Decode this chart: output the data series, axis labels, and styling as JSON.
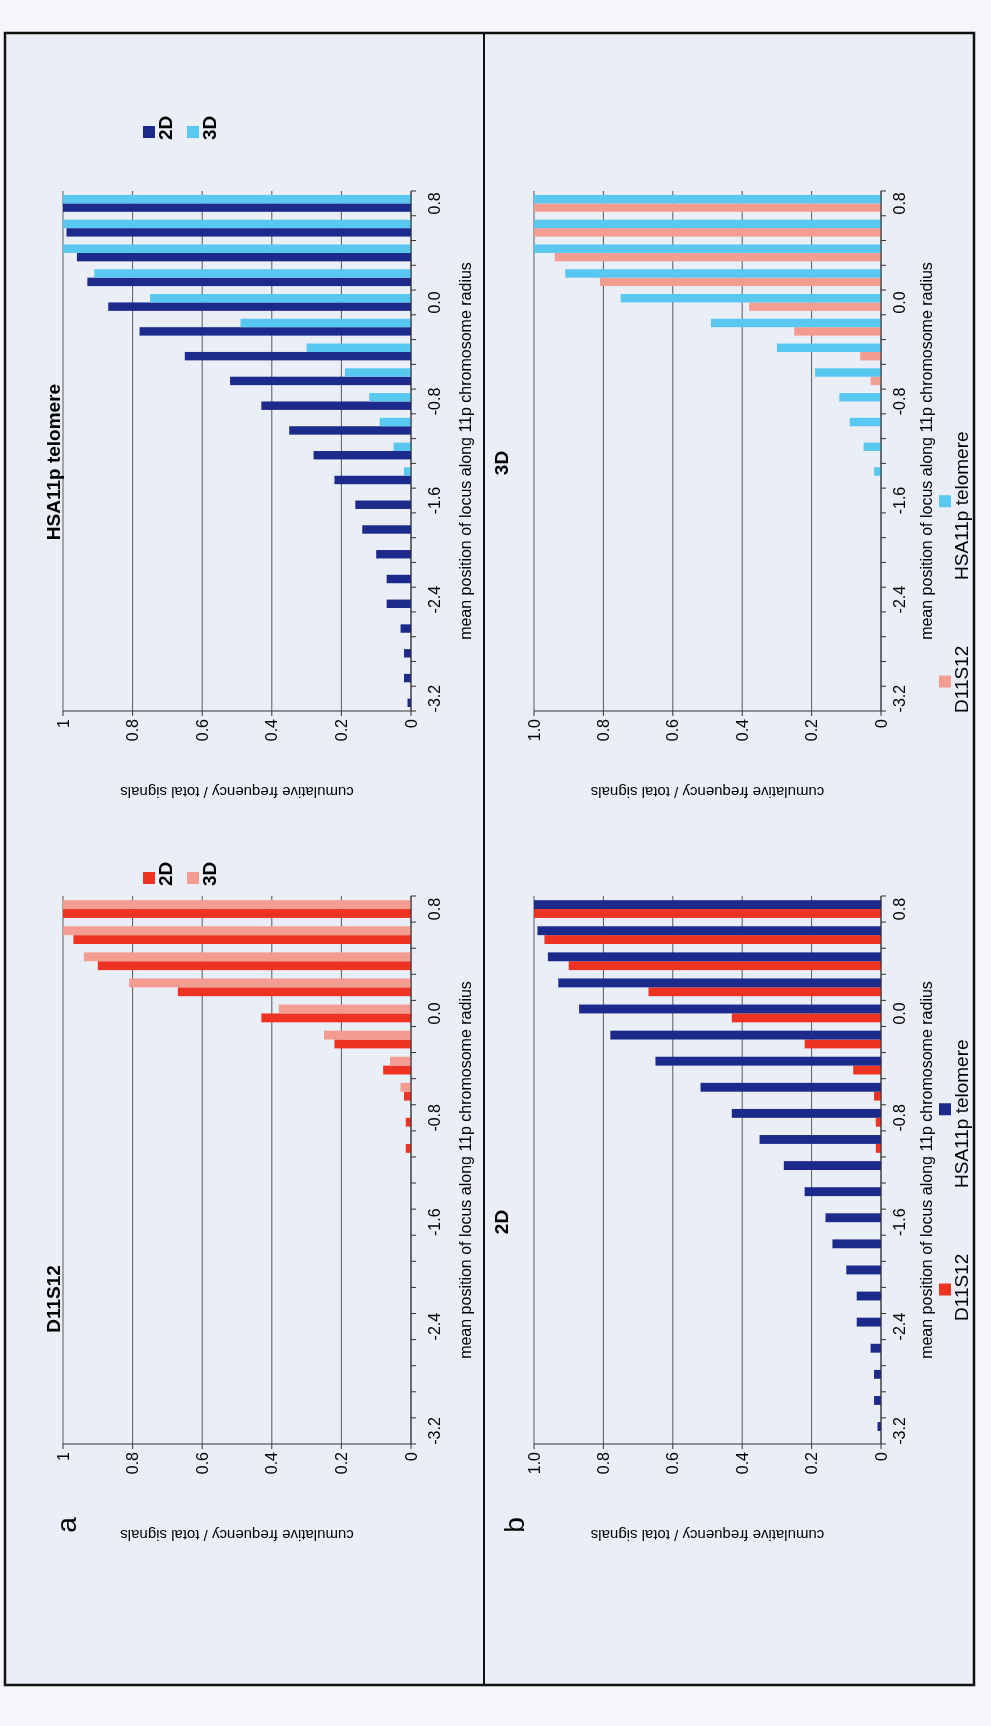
{
  "chart_data": [
    {
      "type": "bar",
      "orientation": "horizontal",
      "title": "D11S12",
      "ylabel": "mean position of locus along 11p chromosome radius",
      "xlabel": "cumulative frequency / total signals",
      "annotations": [
        "a"
      ],
      "categories": [
        "0.8",
        null,
        null,
        null,
        "0.0",
        null,
        null,
        null,
        "-0.8",
        null,
        null,
        null,
        "-1.6",
        null,
        null,
        null,
        "-2.4",
        null,
        null,
        null,
        "-3.2"
      ],
      "series": [
        {
          "name": "2D",
          "color": "#ee3322",
          "values": [
            1.0,
            0.97,
            0.9,
            0.67,
            0.43,
            0.22,
            0.08,
            0.02,
            0.015,
            0.015,
            null,
            null,
            null,
            null,
            null,
            null,
            null,
            null,
            null,
            null,
            null
          ]
        },
        {
          "name": "3D",
          "color": "#f29c92",
          "values": [
            1.0,
            1.0,
            0.94,
            0.81,
            0.38,
            0.25,
            0.06,
            0.03,
            null,
            null,
            null,
            null,
            null,
            null,
            null,
            null,
            null,
            null,
            null,
            null,
            null
          ]
        }
      ],
      "xlim": [
        1,
        0
      ],
      "xticks": [
        0,
        0.2,
        0.4,
        0.6,
        0.8,
        1
      ],
      "grid": "x",
      "legend": "top"
    },
    {
      "type": "bar",
      "orientation": "horizontal",
      "title": "HSA11p telomere",
      "ylabel": "mean position of locus along 11p chromosome radius",
      "xlabel": "cumulative frequency / total signals",
      "categories": [
        "0.8",
        null,
        null,
        null,
        "0.0",
        null,
        null,
        null,
        "-0.8",
        null,
        null,
        null,
        "-1.6",
        null,
        null,
        null,
        "-2.4",
        null,
        null,
        null,
        "-3.2"
      ],
      "series": [
        {
          "name": "2D",
          "color": "#1c2a8c",
          "values": [
            1.0,
            0.99,
            0.96,
            0.93,
            0.87,
            0.78,
            0.65,
            0.52,
            0.43,
            0.35,
            0.28,
            0.22,
            0.16,
            0.14,
            0.1,
            0.07,
            0.07,
            0.03,
            0.02,
            0.02,
            0.01
          ]
        },
        {
          "name": "3D",
          "color": "#58c8f0",
          "values": [
            1.0,
            1.0,
            1.0,
            0.91,
            0.75,
            0.49,
            0.3,
            0.19,
            0.12,
            0.09,
            0.05,
            0.02,
            null,
            null,
            null,
            null,
            null,
            null,
            null,
            null,
            null
          ]
        }
      ],
      "xlim": [
        1,
        0
      ],
      "xticks": [
        0,
        0.2,
        0.4,
        0.6,
        0.8,
        1
      ],
      "grid": "x",
      "legend": "top"
    },
    {
      "type": "bar",
      "orientation": "horizontal",
      "title": "2D",
      "ylabel": "mean position of locus along 11p chromosome radius",
      "xlabel": "cumulative frequency / total signals",
      "annotations": [
        "b"
      ],
      "categories": [
        "0.8",
        null,
        null,
        null,
        "0.0",
        null,
        null,
        null,
        "-0.8",
        null,
        null,
        null,
        "-1.6",
        null,
        null,
        null,
        "-2.4",
        null,
        null,
        null,
        "-3.2"
      ],
      "series": [
        {
          "name": "D11S12",
          "color": "#ee3322",
          "values": [
            1.0,
            0.97,
            0.9,
            0.67,
            0.43,
            0.22,
            0.08,
            0.02,
            0.015,
            0.015,
            null,
            null,
            null,
            null,
            null,
            null,
            null,
            null,
            null,
            null,
            null
          ]
        },
        {
          "name": "HSA11p telomere",
          "color": "#1c2a8c",
          "values": [
            1.0,
            0.99,
            0.96,
            0.93,
            0.87,
            0.78,
            0.65,
            0.52,
            0.43,
            0.35,
            0.28,
            0.22,
            0.16,
            0.14,
            0.1,
            0.07,
            0.07,
            0.03,
            0.02,
            0.02,
            0.01
          ]
        }
      ],
      "xlim": [
        1,
        0
      ],
      "xticks": [
        0,
        0.2,
        0.4,
        0.6,
        0.8,
        {
          "value": 1,
          "label": "1.0"
        }
      ],
      "grid": "x",
      "legend": "right"
    },
    {
      "type": "bar",
      "orientation": "horizontal",
      "title": "3D",
      "ylabel": "mean position of locus along 11p chromosome radius",
      "xlabel": "cumulative frequency / total signals",
      "categories": [
        "0.8",
        null,
        null,
        null,
        "0.0",
        null,
        null,
        null,
        "-0.8",
        null,
        null,
        null,
        "-1.6",
        null,
        null,
        null,
        "-2.4",
        null,
        null,
        null,
        "-3.2"
      ],
      "series": [
        {
          "name": "D11S12",
          "color": "#f29c92",
          "values": [
            1.0,
            1.0,
            0.94,
            0.81,
            0.38,
            0.25,
            0.06,
            0.03,
            null,
            null,
            null,
            null,
            null,
            null,
            null,
            null,
            null,
            null,
            null,
            null,
            null
          ]
        },
        {
          "name": "HSA11p telomere",
          "color": "#58c8f0",
          "values": [
            1.0,
            1.0,
            1.0,
            0.91,
            0.75,
            0.49,
            0.3,
            0.19,
            0.12,
            0.09,
            0.05,
            0.02,
            null,
            null,
            null,
            null,
            null,
            null,
            null,
            null,
            null
          ]
        }
      ],
      "xlim": [
        1,
        0
      ],
      "xticks": [
        0,
        0.2,
        0.4,
        0.6,
        0.8,
        {
          "value": 1,
          "label": "1.0"
        }
      ],
      "grid": "x",
      "legend": "right"
    }
  ]
}
